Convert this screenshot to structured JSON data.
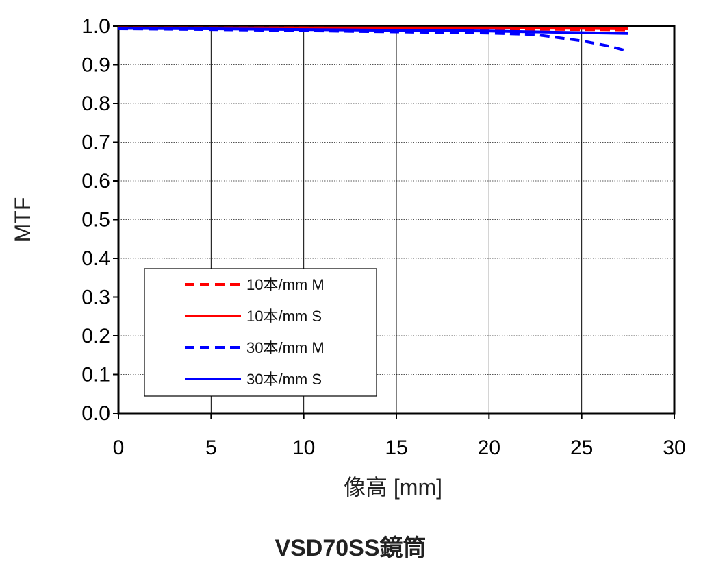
{
  "caption": "VSD70SS鏡筒",
  "chart_data": {
    "type": "line",
    "xlabel": "像高 [mm]",
    "ylabel": "MTF",
    "xlim": [
      0,
      30
    ],
    "ylim": [
      0.0,
      1.0
    ],
    "xticks": [
      "0",
      "5",
      "10",
      "15",
      "20",
      "25",
      "30"
    ],
    "yticks": [
      "0.0",
      "0.1",
      "0.2",
      "0.3",
      "0.4",
      "0.5",
      "0.6",
      "0.7",
      "0.8",
      "0.9",
      "1.0"
    ],
    "grid": {
      "x": "solid",
      "y": "dotted"
    },
    "legend_position": "lower-left",
    "series": [
      {
        "name": "10本/mm M",
        "color": "#ff0000",
        "dash": "dashed",
        "x": [
          0,
          5,
          10,
          15,
          20,
          25,
          27.5
        ],
        "y": [
          0.995,
          0.995,
          0.995,
          0.994,
          0.993,
          0.991,
          0.99
        ]
      },
      {
        "name": "10本/mm S",
        "color": "#ff0000",
        "dash": "solid",
        "x": [
          0,
          5,
          10,
          15,
          20,
          25,
          27.5
        ],
        "y": [
          0.995,
          0.995,
          0.995,
          0.995,
          0.995,
          0.994,
          0.993
        ]
      },
      {
        "name": "30本/mm M",
        "color": "#0000ff",
        "dash": "dashed",
        "x": [
          0,
          5,
          10,
          15,
          20,
          22.5,
          25,
          26.5,
          27.5
        ],
        "y": [
          0.993,
          0.991,
          0.988,
          0.985,
          0.982,
          0.978,
          0.962,
          0.948,
          0.935
        ]
      },
      {
        "name": "30本/mm S",
        "color": "#0000ff",
        "dash": "solid",
        "x": [
          0,
          5,
          10,
          15,
          20,
          25,
          27.5
        ],
        "y": [
          0.994,
          0.993,
          0.991,
          0.989,
          0.987,
          0.983,
          0.981
        ]
      }
    ]
  }
}
